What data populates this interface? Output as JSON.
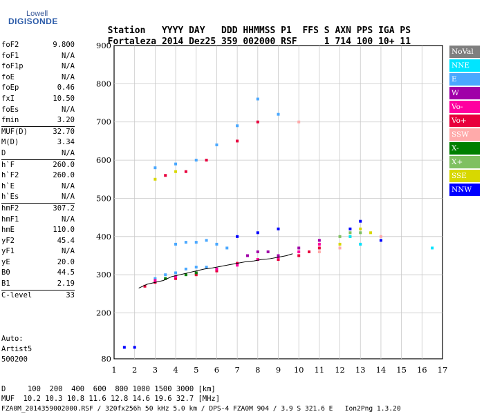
{
  "logo": {
    "top": "Lowell",
    "bottom": "DIGISONDE"
  },
  "header": {
    "labels": [
      "Station",
      "YYYY DAY",
      "DDD",
      "HHMMSS",
      "P1",
      "FFS",
      "S",
      "AXN",
      "PPS",
      "IGA",
      "PS"
    ],
    "values": [
      "Fortaleza",
      "2014 Dez25",
      "359",
      "002000",
      "RSF",
      "1",
      "714",
      "100",
      "10+",
      "11"
    ]
  },
  "params": [
    {
      "name": "foF2",
      "value": "9.800"
    },
    {
      "name": "foF1",
      "value": "N/A"
    },
    {
      "name": "foF1p",
      "value": "N/A"
    },
    {
      "name": "foE",
      "value": "N/A"
    },
    {
      "name": "foEp",
      "value": "0.46"
    },
    {
      "name": "fxI",
      "value": "10.50"
    },
    {
      "name": "foEs",
      "value": "N/A"
    },
    {
      "name": "fmin",
      "value": "3.20"
    },
    {
      "name": "MUF(D)",
      "value": "32.70",
      "sep": true
    },
    {
      "name": "M(D)",
      "value": "3.34"
    },
    {
      "name": "D",
      "value": "N/A"
    },
    {
      "name": "h`F",
      "value": "260.0",
      "sep": true
    },
    {
      "name": "h`F2",
      "value": "260.0"
    },
    {
      "name": "h`E",
      "value": "N/A"
    },
    {
      "name": "h`Es",
      "value": "N/A"
    },
    {
      "name": "hmF2",
      "value": "307.2",
      "sep": true
    },
    {
      "name": "hmF1",
      "value": "N/A"
    },
    {
      "name": "hmE",
      "value": "110.0"
    },
    {
      "name": "yF2",
      "value": "45.4"
    },
    {
      "name": "yF1",
      "value": "N/A"
    },
    {
      "name": "yE",
      "value": "20.0"
    },
    {
      "name": "B0",
      "value": "44.5"
    },
    {
      "name": "B1",
      "value": "2.19"
    },
    {
      "name": "C-level",
      "value": "33",
      "sep": true
    }
  ],
  "auto": [
    "Auto:",
    "Artist5",
    "500200"
  ],
  "footer": {
    "line1": "D     100  200  400  600  800 1000 1500 3000 [km]",
    "line2": "MUF  10.2 10.3 10.8 11.6 12.8 14.6 19.6 32.7 [MHz]",
    "line3": "FZA0M_2014359002000.RSF / 320fx256h 50 kHz 5.0 km / DPS-4 FZA0M 904 / 3.9 S 321.6 E   Ion2Png 1.3.20"
  },
  "legend": [
    {
      "label": "NoVal",
      "color": "#7f7f7f"
    },
    {
      "label": "NNE",
      "color": "#00e5ff"
    },
    {
      "label": "E",
      "color": "#4aa8ff"
    },
    {
      "label": "W",
      "color": "#a000a8"
    },
    {
      "label": "Vo-",
      "color": "#ff00a0"
    },
    {
      "label": "Vo+",
      "color": "#e8003c"
    },
    {
      "label": "SSW",
      "color": "#ffaaaa"
    },
    {
      "label": "X-",
      "color": "#007f00"
    },
    {
      "label": "X+",
      "color": "#7fc060"
    },
    {
      "label": "SSE",
      "color": "#d8d800"
    },
    {
      "label": "NNW",
      "color": "#0000ff"
    }
  ],
  "chart_data": {
    "type": "scatter",
    "title": "",
    "xlabel": "",
    "ylabel": "",
    "xlim": [
      1,
      17
    ],
    "ylim": [
      80,
      900
    ],
    "x_ticks": [
      1,
      2,
      3,
      4,
      5,
      6,
      7,
      8,
      9,
      10,
      11,
      12,
      13,
      14,
      15,
      16,
      17
    ],
    "y_ticks": [
      80,
      200,
      300,
      400,
      500,
      600,
      700,
      800,
      900
    ],
    "grid": true,
    "series": [
      {
        "name": "E",
        "color": "#4aa8ff",
        "points": [
          [
            3,
            290
          ],
          [
            3.5,
            300
          ],
          [
            4,
            305
          ],
          [
            4.5,
            315
          ],
          [
            5,
            320
          ],
          [
            5.5,
            320
          ],
          [
            6,
            315
          ],
          [
            4,
            380
          ],
          [
            4.5,
            385
          ],
          [
            5,
            385
          ],
          [
            5.5,
            390
          ],
          [
            6,
            380
          ],
          [
            6.5,
            370
          ],
          [
            3,
            580
          ],
          [
            4,
            590
          ],
          [
            5,
            600
          ],
          [
            6,
            640
          ],
          [
            7,
            690
          ],
          [
            8,
            760
          ],
          [
            9,
            720
          ]
        ]
      },
      {
        "name": "Vo+",
        "color": "#e8003c",
        "points": [
          [
            2.5,
            270
          ],
          [
            3,
            280
          ],
          [
            4,
            290
          ],
          [
            5,
            300
          ],
          [
            6,
            310
          ],
          [
            7,
            330
          ],
          [
            8,
            340
          ],
          [
            9,
            340
          ],
          [
            10,
            350
          ],
          [
            10.5,
            360
          ],
          [
            11,
            370
          ],
          [
            3.5,
            560
          ],
          [
            4.5,
            570
          ],
          [
            5.5,
            600
          ],
          [
            7,
            650
          ],
          [
            8,
            700
          ]
        ]
      },
      {
        "name": "Vo-",
        "color": "#ff00a0",
        "points": [
          [
            3,
            285
          ],
          [
            4,
            295
          ],
          [
            5,
            305
          ],
          [
            6,
            315
          ],
          [
            7,
            325
          ],
          [
            8,
            340
          ],
          [
            9,
            345
          ],
          [
            10,
            360
          ],
          [
            11,
            380
          ]
        ]
      },
      {
        "name": "W",
        "color": "#a000a8",
        "points": [
          [
            7.5,
            350
          ],
          [
            8,
            360
          ],
          [
            8.5,
            360
          ],
          [
            9,
            350
          ],
          [
            10,
            370
          ],
          [
            11,
            390
          ]
        ]
      },
      {
        "name": "X-",
        "color": "#007f00",
        "points": [
          [
            3.5,
            290
          ],
          [
            4.5,
            300
          ],
          [
            5,
            305
          ]
        ]
      },
      {
        "name": "X+",
        "color": "#7fc060",
        "points": [
          [
            12,
            400
          ],
          [
            12.5,
            410
          ],
          [
            13,
            410
          ]
        ]
      },
      {
        "name": "SSE",
        "color": "#d8d800",
        "points": [
          [
            12,
            380
          ],
          [
            12.5,
            400
          ],
          [
            13,
            420
          ],
          [
            13.5,
            410
          ],
          [
            3,
            550
          ],
          [
            4,
            570
          ]
        ]
      },
      {
        "name": "SSW",
        "color": "#ffaaaa",
        "points": [
          [
            11,
            360
          ],
          [
            12,
            370
          ],
          [
            13,
            380
          ],
          [
            14,
            400
          ],
          [
            10,
            700
          ]
        ]
      },
      {
        "name": "NNW",
        "color": "#0000ff",
        "points": [
          [
            1.5,
            110
          ],
          [
            2,
            110
          ],
          [
            7,
            400
          ],
          [
            8,
            410
          ],
          [
            9,
            420
          ],
          [
            12.5,
            420
          ],
          [
            13,
            440
          ],
          [
            14,
            390
          ]
        ]
      },
      {
        "name": "NNE",
        "color": "#00e5ff",
        "points": [
          [
            12.5,
            400
          ],
          [
            13,
            380
          ],
          [
            16.5,
            370
          ]
        ]
      }
    ],
    "trace_x": [
      2.2,
      2.6,
      3.0,
      3.4,
      3.8,
      4.2,
      4.6,
      5.0,
      5.4,
      5.8,
      6.2,
      6.6,
      7.0,
      7.4,
      7.8,
      8.2,
      8.6,
      9.0,
      9.4,
      9.7
    ],
    "trace_y": [
      265,
      275,
      280,
      285,
      295,
      300,
      305,
      310,
      315,
      318,
      322,
      326,
      330,
      334,
      336,
      340,
      342,
      346,
      350,
      355
    ]
  }
}
